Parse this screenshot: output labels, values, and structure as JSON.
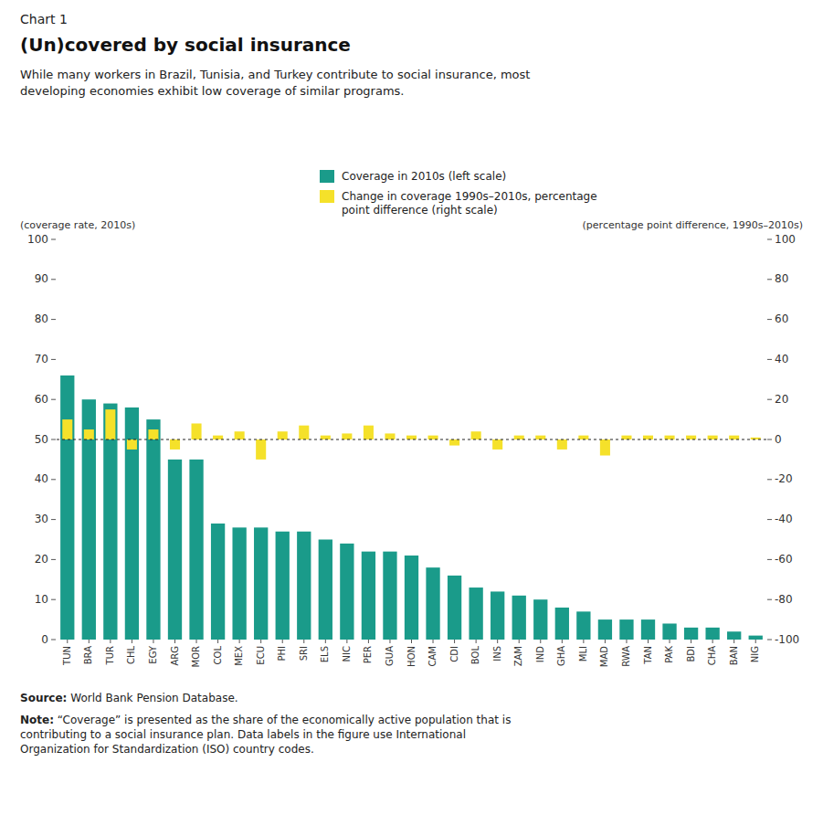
{
  "chart_data": {
    "type": "bar",
    "title": "(Un)covered by social insurance",
    "subtitle": "While many workers in Brazil, Tunisia, and Turkey contribute to social insurance, most developing economies exhibit low coverage of similar programs.",
    "y_label": "(coverage rate, 2010s)",
    "y2_label": "(percentage point difference, 1990s–2010s)",
    "annotations": [
      "Chart 1",
      "Source: World Bank Pension Database.",
      "Note: “Coverage” is presented as the share of the economically active population that is\ncontributing to a social insurance plan. Data labels in the figure use International\nOrganization for Standardization (ISO) country codes."
    ],
    "categories": [
      "TUN",
      "BRA",
      "TUR",
      "CHL",
      "EGY",
      "ARG",
      "MOR",
      "COL",
      "MEX",
      "ECU",
      "PHI",
      "SRI",
      "ELS",
      "NIC",
      "PER",
      "GUA",
      "HON",
      "CAM",
      "CDI",
      "BOL",
      "INS",
      "ZAM",
      "IND",
      "GHA",
      "MLI",
      "MAD",
      "RWA",
      "TAN",
      "PAK",
      "BDI",
      "CHA",
      "BAN",
      "NIG"
    ],
    "series": [
      {
        "name": "Coverage in 2010s (left scale)",
        "color": "#1a9b8a",
        "values": [
          66,
          60,
          59,
          58,
          55,
          45,
          45,
          29,
          28,
          28,
          27,
          27,
          25,
          24,
          22,
          22,
          21,
          18,
          16,
          13,
          12,
          11,
          10,
          8,
          7,
          5,
          5,
          5,
          4,
          3,
          3,
          2,
          1
        ]
      },
      {
        "name": "Change in coverage 1990s–2010s, percentage point difference (right scale)",
        "color": "#f5e12a",
        "axis": "y2",
        "values": [
          10,
          5,
          15,
          -5,
          5,
          -5,
          8,
          2,
          4,
          -10,
          4,
          7,
          2,
          3,
          7,
          3,
          2,
          2,
          -3,
          4,
          -5,
          2,
          2,
          -5,
          2,
          -8,
          2,
          2,
          2,
          2,
          2,
          2,
          1
        ]
      }
    ],
    "ylim": [
      0,
      100
    ],
    "yticks": [
      0,
      10,
      20,
      30,
      40,
      50,
      60,
      70,
      80,
      90,
      100
    ],
    "y2lim": [
      -100,
      100
    ],
    "y2ticks": [
      -100,
      -80,
      -60,
      -40,
      -20,
      0,
      20,
      40,
      60,
      80,
      100
    ],
    "grid": false,
    "legend": "top"
  }
}
